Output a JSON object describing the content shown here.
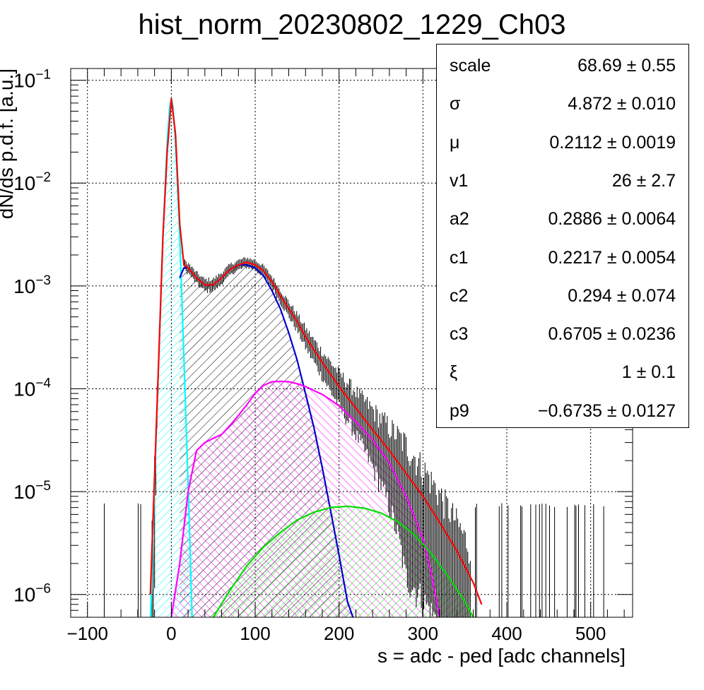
{
  "chart_data": {
    "type": "line",
    "title": "hist_norm_20230802_1229_Ch03",
    "xlabel": "s = adc - ped [adc channels]",
    "ylabel": "dN/ds p.d.f. [a.u.]",
    "xlim": [
      -120,
      550
    ],
    "ylim": [
      6e-07,
      0.13
    ],
    "yscale": "log",
    "grid": true,
    "x_ticks": [
      {
        "value": -100,
        "label": "−100"
      },
      {
        "value": 0,
        "label": "0"
      },
      {
        "value": 100,
        "label": "100"
      },
      {
        "value": 200,
        "label": "200"
      },
      {
        "value": 300,
        "label": "300"
      },
      {
        "value": 400,
        "label": "400"
      },
      {
        "value": 500,
        "label": "500"
      }
    ],
    "y_ticks": [
      {
        "value": 1e-06,
        "base": "10",
        "exp": "−6"
      },
      {
        "value": 1e-05,
        "base": "10",
        "exp": "−5"
      },
      {
        "value": 0.0001,
        "base": "10",
        "exp": "−4"
      },
      {
        "value": 0.001,
        "base": "10",
        "exp": "−3"
      },
      {
        "value": 0.01,
        "base": "10",
        "exp": "−2"
      },
      {
        "value": 0.1,
        "base": "10",
        "exp": "−1"
      }
    ],
    "series": [
      {
        "color": "#ff0000",
        "x": [
          -25,
          -15,
          -10,
          -5,
          0,
          5,
          10,
          15,
          20,
          30,
          40,
          50,
          60,
          70,
          80,
          90,
          100,
          110,
          120,
          130,
          140,
          150,
          160,
          170,
          180,
          200,
          220,
          240,
          260,
          280,
          300,
          320,
          340,
          360,
          370
        ],
        "y": [
          1e-06,
          0.0002,
          0.003,
          0.02,
          0.066,
          0.03,
          0.004,
          0.0016,
          0.0015,
          0.0012,
          0.00102,
          0.00103,
          0.0012,
          0.00145,
          0.0016,
          0.0017,
          0.0016,
          0.0014,
          0.0011,
          0.0008,
          0.0006,
          0.00045,
          0.00032,
          0.00024,
          0.00018,
          0.000105,
          6.5e-05,
          4e-05,
          2.5e-05,
          1.5e-05,
          9e-06,
          5e-06,
          2.7e-06,
          1.3e-06,
          8e-07
        ]
      },
      {
        "color": "#00ffff",
        "fill": "#00ffff",
        "x": [
          -25,
          -20,
          -15,
          -10,
          -5,
          -2,
          0,
          2,
          5,
          10,
          15,
          20,
          25
        ],
        "y": [
          5e-07,
          1.2e-05,
          0.0002,
          0.003,
          0.025,
          0.055,
          0.066,
          0.055,
          0.025,
          0.003,
          0.0002,
          1.2e-05,
          5e-07
        ]
      },
      {
        "color": "#0000cc",
        "fill": "#000000",
        "x": [
          10,
          15,
          20,
          30,
          40,
          50,
          60,
          70,
          80,
          90,
          100,
          110,
          120,
          130,
          140,
          150,
          160,
          170,
          180,
          190,
          200,
          210,
          220
        ],
        "y": [
          0.0012,
          0.0015,
          0.0015,
          0.0012,
          0.00102,
          0.00103,
          0.0012,
          0.00145,
          0.0016,
          0.0016,
          0.0015,
          0.00125,
          0.0009,
          0.0006,
          0.00035,
          0.00019,
          9e-05,
          4.2e-05,
          1.7e-05,
          6.5e-06,
          2.4e-06,
          8.5e-07,
          5e-07
        ]
      },
      {
        "color": "#ff00ff",
        "fill": "#ff00ff",
        "x": [
          0,
          10,
          20,
          30,
          40,
          50,
          60,
          70,
          80,
          90,
          100,
          110,
          120,
          130,
          140,
          150,
          160,
          170,
          180,
          190,
          200,
          220,
          240,
          260,
          280,
          300,
          310,
          320
        ],
        "y": [
          6e-07,
          2e-06,
          1e-05,
          2.5e-05,
          3e-05,
          3.3e-05,
          3.6e-05,
          4.4e-05,
          5.5e-05,
          7e-05,
          9e-05,
          0.000108,
          0.000117,
          0.000118,
          0.000117,
          0.000112,
          0.000105,
          9.6e-05,
          8.8e-05,
          7.8e-05,
          6.8e-05,
          4.8e-05,
          3.2e-05,
          1.9e-05,
          9e-06,
          3.5e-06,
          1.6e-06,
          6e-07
        ]
      },
      {
        "color": "#00dd00",
        "fill": "#00ff00",
        "x": [
          50,
          70,
          90,
          110,
          130,
          150,
          170,
          190,
          210,
          230,
          250,
          270,
          290,
          310,
          330,
          350,
          360
        ],
        "y": [
          6e-07,
          1.1e-06,
          1.9e-06,
          2.9e-06,
          4e-06,
          5.3e-06,
          6.3e-06,
          7e-06,
          7.2e-06,
          6.9e-06,
          6.2e-06,
          5.1e-06,
          3.8e-06,
          2.5e-06,
          1.5e-06,
          8.5e-07,
          6e-07
        ]
      }
    ],
    "stats": [
      {
        "name": "scale",
        "value": "68.69 ± 0.55"
      },
      {
        "name": "σ",
        "value": "4.872 ± 0.010"
      },
      {
        "name": "μ",
        "value": "0.2112 ± 0.0019"
      },
      {
        "name": "v1",
        "value": "26 ± 2.7"
      },
      {
        "name": "a2",
        "value": "0.2886 ± 0.0064"
      },
      {
        "name": "c1",
        "value": "0.2217 ± 0.0054"
      },
      {
        "name": "c2",
        "value": "0.294 ± 0.074"
      },
      {
        "name": "c3",
        "value": "0.6705 ± 0.0236"
      },
      {
        "name": "ξ",
        "value": "1 ± 0.1"
      },
      {
        "name": "p9",
        "value": "−0.6735 ± 0.0127"
      }
    ]
  }
}
